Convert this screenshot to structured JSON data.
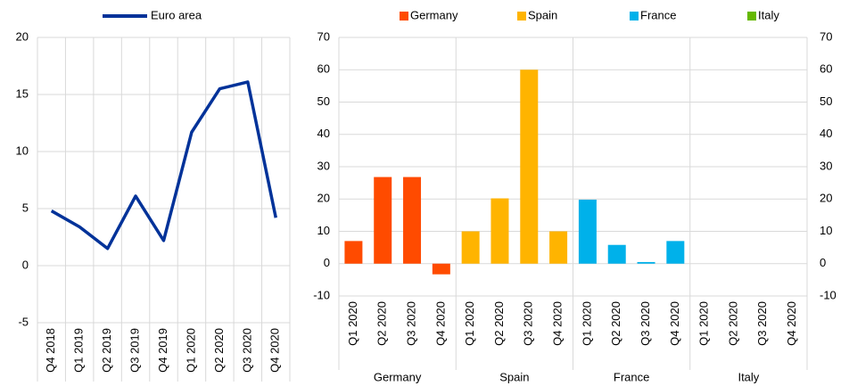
{
  "chart_data": [
    {
      "type": "line",
      "categories": [
        "Q4 2018",
        "Q1 2019",
        "Q2 2019",
        "Q3 2019",
        "Q4 2019",
        "Q1 2020",
        "Q2 2020",
        "Q3 2020",
        "Q4 2020"
      ],
      "series": [
        {
          "name": "Euro area",
          "color": "#003299",
          "values": [
            4.8,
            3.4,
            1.5,
            6.1,
            2.2,
            11.7,
            15.5,
            16.1,
            4.2
          ]
        }
      ],
      "ylim": [
        -5,
        20
      ],
      "yticks": [
        -5,
        0,
        5,
        10,
        15,
        20
      ],
      "grid": true
    },
    {
      "type": "bar",
      "groups": [
        "Germany",
        "Spain",
        "France",
        "Italy"
      ],
      "categories": [
        "Q1 2020",
        "Q2 2020",
        "Q3 2020",
        "Q4 2020"
      ],
      "series": [
        {
          "name": "Germany",
          "color": "#ff4b00",
          "values": [
            7,
            26.8,
            26.8,
            -3.3
          ]
        },
        {
          "name": "Spain",
          "color": "#ffb400",
          "values": [
            10,
            20.2,
            60,
            10
          ]
        },
        {
          "name": "France",
          "color": "#00b1ea",
          "values": [
            19.8,
            5.8,
            0.5,
            7
          ]
        },
        {
          "name": "Italy",
          "color": "#65b800",
          "values": [
            null,
            null,
            null,
            null
          ]
        }
      ],
      "ylim": [
        -10,
        70
      ],
      "yticks": [
        -10,
        0,
        10,
        20,
        30,
        40,
        50,
        60,
        70
      ],
      "y2lim": [
        -10,
        70
      ],
      "y2ticks": [
        -10,
        0,
        10,
        20,
        30,
        40,
        50,
        60,
        70
      ],
      "grid": true
    }
  ]
}
